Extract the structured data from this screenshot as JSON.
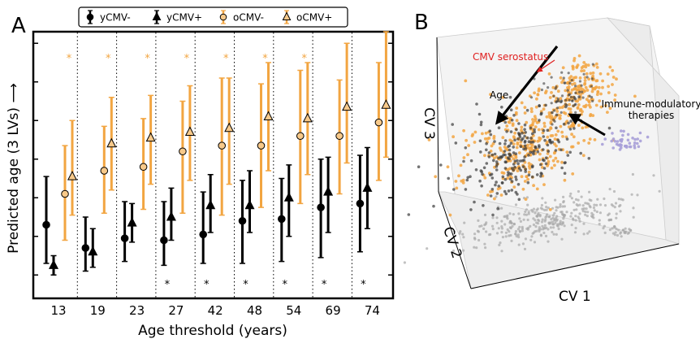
{
  "panel_a": {
    "label": "A",
    "chart_data": {
      "type": "errorbar",
      "xlabel": "Age threshold (years)",
      "ylabel": "Predicted age (3 LVs) ⟶",
      "categories": [
        "13",
        "19",
        "23",
        "27",
        "42",
        "48",
        "54",
        "69",
        "74"
      ],
      "legend": [
        "yCMV-",
        "yCMV+",
        "oCMV-",
        "oCMV+"
      ],
      "legend_position": "top",
      "colors": {
        "young": "#000000",
        "old": "#f2a541"
      },
      "y_ticks_labeled": false,
      "series": [
        {
          "name": "yCMV-",
          "marker": "circle",
          "values": [
            3.3,
            2.7,
            2.95,
            2.9,
            3.05,
            3.4,
            3.45,
            3.75,
            3.85
          ],
          "low": [
            2.3,
            2.1,
            2.35,
            2.25,
            2.3,
            2.3,
            2.35,
            2.45,
            2.6
          ],
          "high": [
            4.55,
            3.5,
            3.9,
            3.9,
            4.15,
            4.45,
            4.5,
            5.0,
            5.1
          ]
        },
        {
          "name": "yCMV+",
          "marker": "triangle",
          "values": [
            2.25,
            2.6,
            3.35,
            3.5,
            3.8,
            3.8,
            4.0,
            4.15,
            4.25
          ],
          "low": [
            2.0,
            2.2,
            2.85,
            2.9,
            3.1,
            3.1,
            3.0,
            3.1,
            3.2
          ],
          "high": [
            2.5,
            3.2,
            3.85,
            4.25,
            4.6,
            4.7,
            4.85,
            5.05,
            5.3
          ]
        },
        {
          "name": "oCMV-",
          "marker": "circle",
          "values": [
            4.1,
            4.7,
            4.8,
            5.2,
            5.35,
            5.35,
            5.6,
            5.6,
            5.95
          ],
          "low": [
            2.9,
            3.6,
            3.7,
            3.6,
            3.55,
            3.75,
            3.85,
            4.1,
            4.45
          ],
          "high": [
            5.35,
            5.85,
            6.05,
            6.5,
            7.1,
            6.95,
            7.3,
            7.05,
            7.5
          ]
        },
        {
          "name": "oCMV+",
          "marker": "triangle",
          "values": [
            4.55,
            5.4,
            5.55,
            5.7,
            5.8,
            6.1,
            6.05,
            6.35,
            6.4
          ],
          "low": [
            3.55,
            4.2,
            4.35,
            4.45,
            4.35,
            4.7,
            4.6,
            4.9,
            5.05
          ],
          "high": [
            6.0,
            6.6,
            6.65,
            6.9,
            7.1,
            7.5,
            7.5,
            8.0,
            8.3
          ]
        }
      ],
      "significance_old": [
        "*",
        "*",
        "*",
        "*",
        "*",
        "*",
        "*",
        "",
        ""
      ],
      "significance_young": [
        "",
        "",
        "",
        "*",
        "*",
        "*",
        "*",
        "*",
        "*"
      ]
    }
  },
  "panel_b": {
    "label": "B",
    "axis_x": "CV 1",
    "axis_y": "CV 2",
    "axis_z": "CV 3",
    "annotation_cmv": "CMV serostatus",
    "annotation_age": "Age",
    "annotation_therapy_line1": "Immune-modulatory",
    "annotation_therapy_line2": "therapies",
    "colors": {
      "young": "#3a3a3a",
      "old": "#f2a541",
      "therapy": "#a9a0d8",
      "projection": "#a8a8a8",
      "cmv_arrow": "#e02020"
    }
  }
}
